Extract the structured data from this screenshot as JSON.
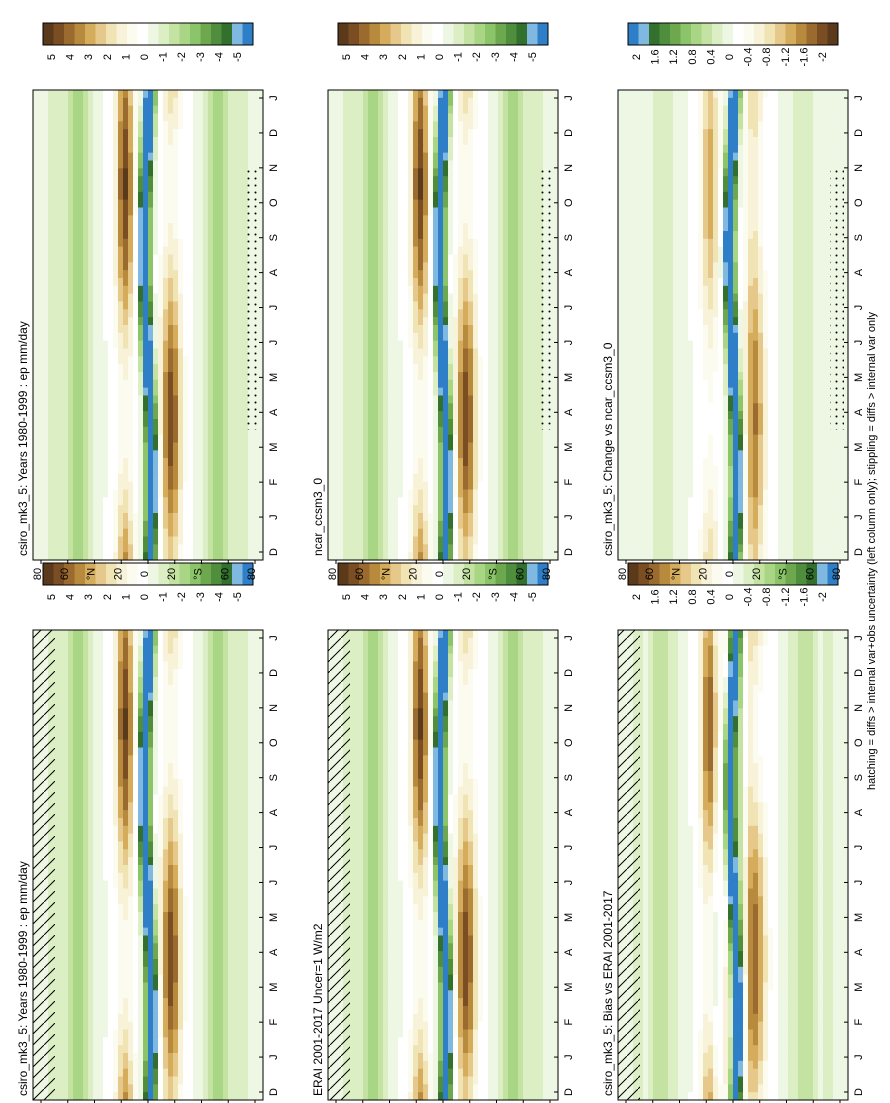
{
  "figure": {
    "footnote": "hatching = diffs > internal var+obs uncertainty (left column only); stippling = diffs > internal var only"
  },
  "chart_data": [
    {
      "type": "heatmap",
      "title": "csiro_mk3_5: Years 1980-1999 : ep mm/day",
      "x": [
        "D",
        "J",
        "F",
        "M",
        "A",
        "M",
        "J",
        "J",
        "A",
        "S",
        "O",
        "N",
        "D",
        "J"
      ],
      "y_ticks": [
        "80",
        "60",
        "°N",
        "20",
        "0",
        "20",
        "°S",
        "60",
        "80"
      ],
      "field": "clim",
      "colorbar": {
        "labels": [
          "5",
          "4",
          "3",
          "2",
          "1",
          "0",
          "-1",
          "-2",
          "-3",
          "-4",
          "-5"
        ],
        "colors": [
          "#5a3a1a",
          "#7a4e22",
          "#9a6a2e",
          "#b88a3e",
          "#d4ac5c",
          "#e6c98a",
          "#f0e3b4",
          "#f8f2d8",
          "#fcfbf0",
          "#ffffff",
          "#eef7e4",
          "#dcefc4",
          "#c4e3a2",
          "#a8d684",
          "#8cc46a",
          "#6ea84e",
          "#4f8e3c",
          "#33702e",
          "#7fb8e0",
          "#2f7fc8"
        ]
      },
      "hatching": true
    },
    {
      "type": "heatmap",
      "title": "csiro_mk3_5: Years 1980-1999 : ep mm/day",
      "x": [
        "D",
        "J",
        "F",
        "M",
        "A",
        "M",
        "J",
        "J",
        "A",
        "S",
        "O",
        "N",
        "D",
        "J"
      ],
      "y_ticks": [
        "80",
        "60",
        "°N",
        "20",
        "0",
        "20",
        "°S",
        "60",
        "80"
      ],
      "field": "clim",
      "colorbar": {
        "labels": [
          "5",
          "4",
          "3",
          "2",
          "1",
          "0",
          "-1",
          "-2",
          "-3",
          "-4",
          "-5"
        ],
        "colors": [
          "#5a3a1a",
          "#7a4e22",
          "#9a6a2e",
          "#b88a3e",
          "#d4ac5c",
          "#e6c98a",
          "#f0e3b4",
          "#f8f2d8",
          "#fcfbf0",
          "#ffffff",
          "#eef7e4",
          "#dcefc4",
          "#c4e3a2",
          "#a8d684",
          "#8cc46a",
          "#6ea84e",
          "#4f8e3c",
          "#33702e",
          "#7fb8e0",
          "#2f7fc8"
        ]
      },
      "stippling": true
    },
    {
      "type": "heatmap",
      "title": "ERAI 2001-2017 Uncer=1 W/m2",
      "x": [
        "D",
        "J",
        "F",
        "M",
        "A",
        "M",
        "J",
        "J",
        "A",
        "S",
        "O",
        "N",
        "D",
        "J"
      ],
      "y_ticks": [
        "80",
        "60",
        "°N",
        "20",
        "0",
        "20",
        "°S",
        "60",
        "80"
      ],
      "field": "clim",
      "colorbar": {
        "labels": [
          "5",
          "4",
          "3",
          "2",
          "1",
          "0",
          "-1",
          "-2",
          "-3",
          "-4",
          "-5"
        ],
        "colors": [
          "#5a3a1a",
          "#7a4e22",
          "#9a6a2e",
          "#b88a3e",
          "#d4ac5c",
          "#e6c98a",
          "#f0e3b4",
          "#f8f2d8",
          "#fcfbf0",
          "#ffffff",
          "#eef7e4",
          "#dcefc4",
          "#c4e3a2",
          "#a8d684",
          "#8cc46a",
          "#6ea84e",
          "#4f8e3c",
          "#33702e",
          "#7fb8e0",
          "#2f7fc8"
        ]
      },
      "hatching": true
    },
    {
      "type": "heatmap",
      "title": "ncar_ccsm3_0",
      "x": [
        "D",
        "J",
        "F",
        "M",
        "A",
        "M",
        "J",
        "J",
        "A",
        "S",
        "O",
        "N",
        "D",
        "J"
      ],
      "y_ticks": [
        "80",
        "60",
        "°N",
        "20",
        "0",
        "20",
        "°S",
        "60",
        "80"
      ],
      "field": "clim",
      "colorbar": {
        "labels": [
          "5",
          "4",
          "3",
          "2",
          "1",
          "0",
          "-1",
          "-2",
          "-3",
          "-4",
          "-5"
        ],
        "colors": [
          "#5a3a1a",
          "#7a4e22",
          "#9a6a2e",
          "#b88a3e",
          "#d4ac5c",
          "#e6c98a",
          "#f0e3b4",
          "#f8f2d8",
          "#fcfbf0",
          "#ffffff",
          "#eef7e4",
          "#dcefc4",
          "#c4e3a2",
          "#a8d684",
          "#8cc46a",
          "#6ea84e",
          "#4f8e3c",
          "#33702e",
          "#7fb8e0",
          "#2f7fc8"
        ]
      },
      "stippling": true
    },
    {
      "type": "heatmap",
      "title": "csiro_mk3_5: Bias vs ERAI 2001-2017",
      "x": [
        "D",
        "J",
        "F",
        "M",
        "A",
        "M",
        "J",
        "J",
        "A",
        "S",
        "O",
        "N",
        "D",
        "J"
      ],
      "y_ticks": [
        "80",
        "60",
        "°N",
        "20",
        "0",
        "20",
        "°S",
        "60",
        "80"
      ],
      "field": "diff",
      "colorbar": {
        "labels": [
          "2",
          "1.6",
          "1.2",
          "0.8",
          "0.4",
          "0",
          "-0.4",
          "-0.8",
          "-1.2",
          "-1.6",
          "-2"
        ],
        "colors": [
          "#5a3a1a",
          "#7a4e22",
          "#9a6a2e",
          "#b88a3e",
          "#d4ac5c",
          "#e6c98a",
          "#f0e3b4",
          "#f8f2d8",
          "#fcfbf0",
          "#ffffff",
          "#eef7e4",
          "#dcefc4",
          "#c4e3a2",
          "#a8d684",
          "#8cc46a",
          "#6ea84e",
          "#4f8e3c",
          "#33702e",
          "#7fb8e0",
          "#2f7fc8"
        ]
      },
      "hatching": true
    },
    {
      "type": "heatmap",
      "title": "csiro_mk3_5: Change vs ncar_ccsm3_0",
      "x": [
        "D",
        "J",
        "F",
        "M",
        "A",
        "M",
        "J",
        "J",
        "A",
        "S",
        "O",
        "N",
        "D",
        "J"
      ],
      "y_ticks": [
        "80",
        "60",
        "°N",
        "20",
        "0",
        "20",
        "°S",
        "60",
        "80"
      ],
      "field": "change",
      "colorbar": {
        "labels": [
          "2",
          "1.6",
          "1.2",
          "0.8",
          "0.4",
          "0",
          "-0.4",
          "-0.8",
          "-1.2",
          "-1.6",
          "-2"
        ],
        "colors": [
          "#2f7fc8",
          "#7fb8e0",
          "#33702e",
          "#4f8e3c",
          "#6ea84e",
          "#8cc46a",
          "#a8d684",
          "#c4e3a2",
          "#dcefc4",
          "#eef7e4",
          "#ffffff",
          "#fcfbf0",
          "#f8f2d8",
          "#f0e3b4",
          "#e6c98a",
          "#d4ac5c",
          "#b88a3e",
          "#9a6a2e",
          "#7a4e22",
          "#5a3a1a"
        ]
      },
      "stippling": true
    }
  ]
}
